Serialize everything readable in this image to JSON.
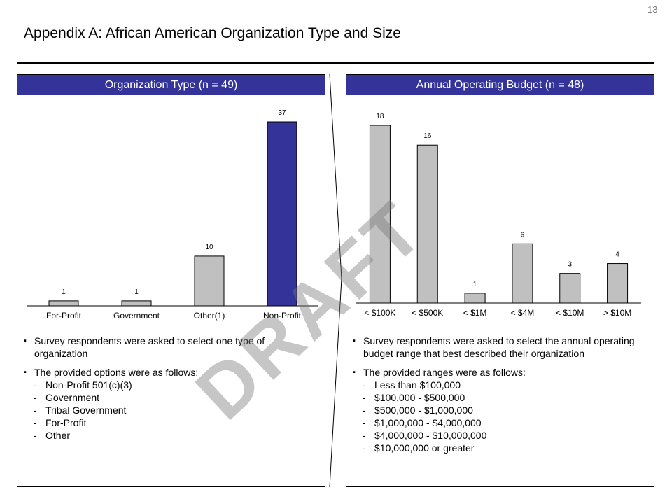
{
  "page_number": "13",
  "title": "Appendix A: African American Organization Type and Size",
  "watermark": "DRAFT",
  "left_panel": {
    "header": "Organization Type (n = 49)",
    "bullets": [
      "Survey respondents were asked to select one type of organization",
      "The provided options were as follows:"
    ],
    "options": [
      "Non-Profit 501(c)(3)",
      "Government",
      "Tribal Government",
      "For-Profit",
      "Other"
    ]
  },
  "right_panel": {
    "header": "Annual Operating Budget (n = 48)",
    "bullets": [
      "Survey respondents were asked to select the annual operating budget range that best described their organization",
      "The provided ranges were as follows:"
    ],
    "options": [
      "Less than $100,000",
      "$100,000 - $500,000",
      "$500,000 - $1,000,000",
      "$1,000,000 - $4,000,000",
      "$4,000,000 - $10,000,000",
      "$10,000,000 or greater"
    ]
  },
  "colors": {
    "header_bg": "#333399",
    "highlight_bar": "#333399",
    "bar": "#c0c0c0"
  },
  "chart_data": [
    {
      "type": "bar",
      "title": "Organization Type (n = 49)",
      "categories": [
        "For-Profit",
        "Government",
        "Other(1)",
        "Non-Profit"
      ],
      "values": [
        1,
        1,
        10,
        37
      ],
      "highlight": [
        false,
        false,
        false,
        true
      ],
      "xlabel": "",
      "ylabel": "",
      "ylim": [
        0,
        37
      ],
      "grid": false
    },
    {
      "type": "bar",
      "title": "Annual Operating Budget (n = 48)",
      "categories": [
        "< $100K",
        "< $500K",
        "< $1M",
        "< $4M",
        "< $10M",
        "> $10M"
      ],
      "values": [
        18,
        16,
        1,
        6,
        3,
        4
      ],
      "xlabel": "",
      "ylabel": "",
      "ylim": [
        0,
        18
      ],
      "grid": false
    }
  ]
}
